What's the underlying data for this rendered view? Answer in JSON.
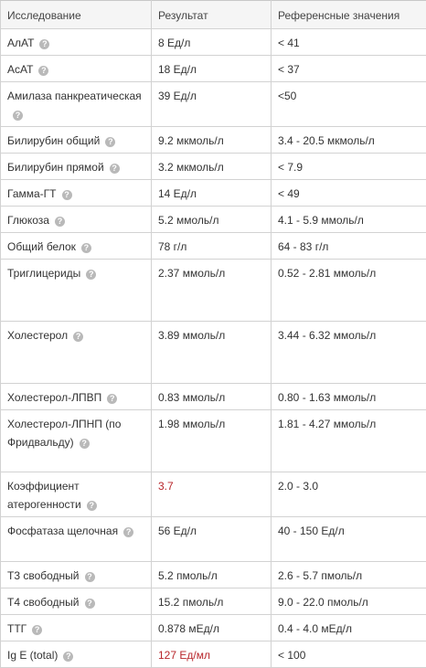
{
  "headers": [
    "Исследование",
    "Результат",
    "Референсные значения"
  ],
  "rows": [
    {
      "name": "АлАТ",
      "result": "8 Ед/л",
      "ref": "< 41",
      "flag": false,
      "h": 29
    },
    {
      "name": "АсАТ",
      "result": "18 Ед/л",
      "ref": "< 37",
      "flag": false,
      "h": 29
    },
    {
      "name": "Амилаза панкреатическая",
      "result": "39 Ед/л",
      "ref": "<50",
      "flag": false,
      "h": 49
    },
    {
      "name": "Билирубин общий",
      "result": "9.2 мкмоль/л",
      "ref": "3.4 - 20.5 мкмоль/л",
      "flag": false,
      "h": 29
    },
    {
      "name": "Билирубин прямой",
      "result": "3.2 мкмоль/л",
      "ref": "< 7.9",
      "flag": false,
      "h": 29
    },
    {
      "name": "Гамма-ГТ",
      "result": "14 Ед/л",
      "ref": "< 49",
      "flag": false,
      "h": 29
    },
    {
      "name": "Глюкоза",
      "result": "5.2 ммоль/л",
      "ref": "4.1 - 5.9 ммоль/л",
      "flag": false,
      "h": 29
    },
    {
      "name": "Общий белок",
      "result": "78 г/л",
      "ref": "64 - 83 г/л",
      "flag": false,
      "h": 29
    },
    {
      "name": "Триглицериды",
      "result": "2.37 ммоль/л",
      "ref": "0.52 - 2.81 ммоль/л",
      "flag": false,
      "h": 68
    },
    {
      "name": "Холестерол",
      "result": "3.89 ммоль/л",
      "ref": "3.44 - 6.32 ммоль/л",
      "flag": false,
      "h": 68
    },
    {
      "name": "Холестерол-ЛПВП",
      "result": "0.83 ммоль/л",
      "ref": "0.80 - 1.63 ммоль/л",
      "flag": false,
      "h": 29
    },
    {
      "name": "Холестерол-ЛПНП (по Фридвальду)",
      "result": "1.98 ммоль/л",
      "ref": "1.81 - 4.27 ммоль/л",
      "flag": false,
      "h": 68
    },
    {
      "name": "Коэффициент атерогенности",
      "result": "3.7",
      "ref": "2.0 - 3.0",
      "flag": true,
      "h": 49
    },
    {
      "name": "Фосфатаза щелочная",
      "result": "56 Ед/л",
      "ref": "40 - 150 Ед/л",
      "flag": false,
      "h": 49
    },
    {
      "name": "Т3 свободный",
      "result": "5.2 пмоль/л",
      "ref": "2.6 - 5.7 пмоль/л",
      "flag": false,
      "h": 29
    },
    {
      "name": "Т4 свободный",
      "result": "15.2 пмоль/л",
      "ref": "9.0 - 22.0 пмоль/л",
      "flag": false,
      "h": 29
    },
    {
      "name": "ТТГ",
      "result": "0.878 мЕд/л",
      "ref": "0.4 - 4.0 мЕд/л",
      "flag": false,
      "h": 29
    },
    {
      "name": "Ig E (total)",
      "result": "127 Ед/мл",
      "ref": "< 100",
      "flag": true,
      "h": 29
    }
  ],
  "help_icon_glyph": "?",
  "colors": {
    "flagged": "#b8262b",
    "border": "#d2d2d2",
    "header_bg": "#f5f5f5"
  }
}
